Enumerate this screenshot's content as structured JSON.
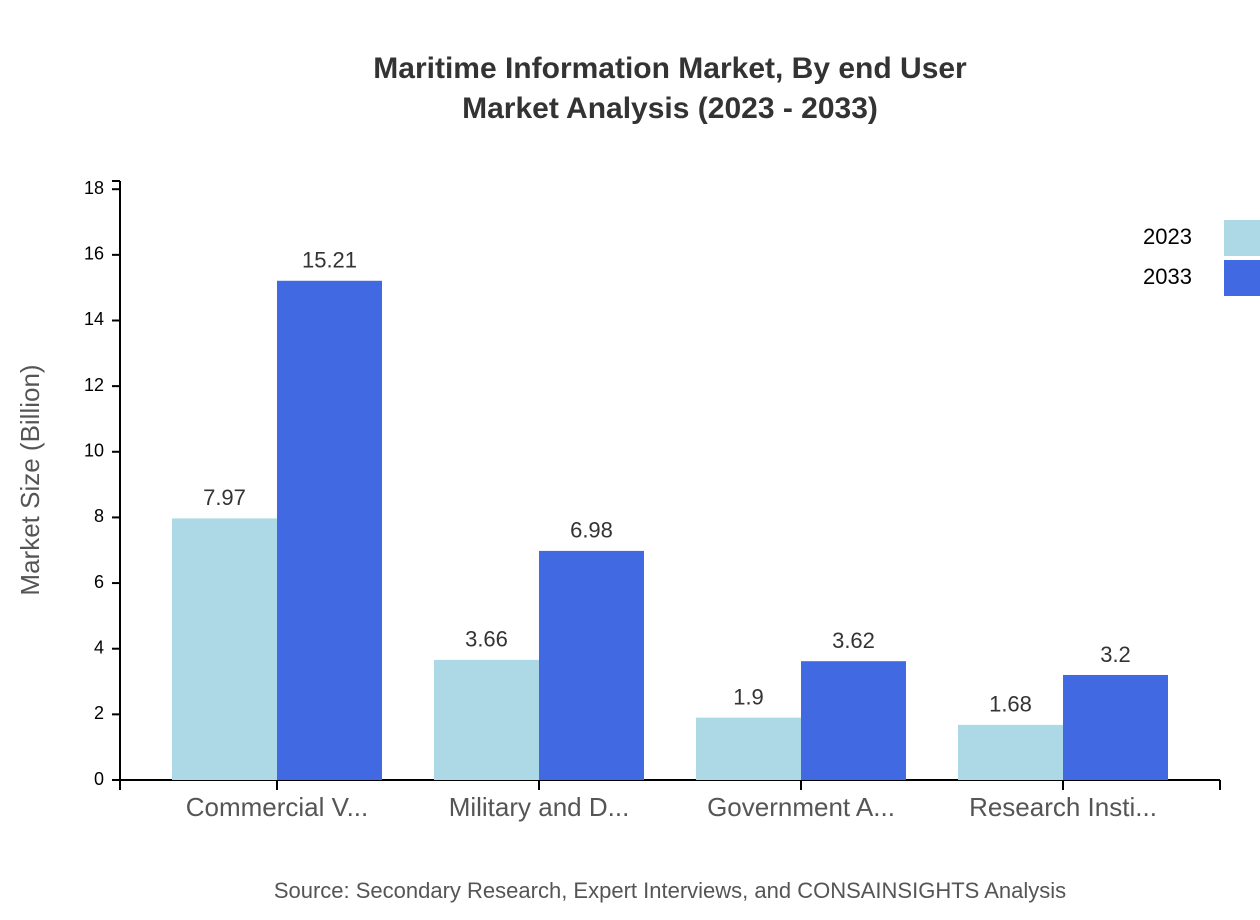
{
  "chart_data": {
    "type": "bar",
    "title": "Maritime Information Market, By end User",
    "subtitle": "Market Analysis (2023 - 2033)",
    "y_label": "Market Size (Billion)",
    "source": "Source: Secondary Research, Expert Interviews, and CONSAINSIGHTS Analysis",
    "categories": [
      "Commercial V...",
      "Military and D...",
      "Government A...",
      "Research Insti..."
    ],
    "series": [
      {
        "name": "2023",
        "color": "#add8e6",
        "values": [
          7.97,
          3.66,
          1.9,
          1.68
        ]
      },
      {
        "name": "2033",
        "color": "#4169e1",
        "values": [
          15.21,
          6.98,
          3.62,
          3.2
        ]
      }
    ],
    "ylim": [
      0,
      18.25
    ],
    "yticks": [
      0,
      2,
      4,
      6,
      8,
      10,
      12,
      14,
      16,
      18
    ],
    "legend": "top-right"
  }
}
